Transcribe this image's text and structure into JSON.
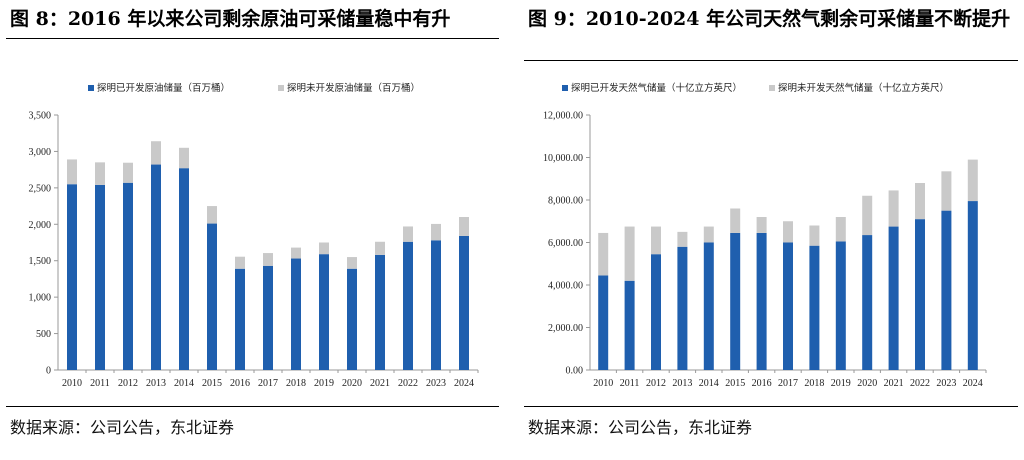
{
  "charts": {
    "oil": {
      "figure_title": "图 8：2016 年以来公司剩余原油可采储量稳中有升",
      "source": "数据来源：公司公告，东北证券"
    },
    "gas": {
      "figure_title": "图 9：2010-2024 年公司天然气剩余可采储量不断提升",
      "source": "数据来源：公司公告，东北证券"
    }
  },
  "colors": {
    "developed": "#1f5fae",
    "undeveloped": "#c9c9c9",
    "axis": "#999999",
    "grid": "#d9d9d9"
  },
  "chart_data": [
    {
      "id": "oil",
      "type": "bar",
      "stacked": true,
      "title": "图 8：2016 年以来公司剩余原油可采储量稳中有升",
      "categories": [
        "2010",
        "2011",
        "2012",
        "2013",
        "2014",
        "2015",
        "2016",
        "2017",
        "2018",
        "2019",
        "2020",
        "2021",
        "2022",
        "2023",
        "2024"
      ],
      "series": [
        {
          "name": "探明已开发原油储量（百万桶）",
          "color": "#1f5fae",
          "values": [
            2550,
            2540,
            2570,
            2820,
            2770,
            2010,
            1390,
            1430,
            1530,
            1590,
            1390,
            1580,
            1760,
            1780,
            1840
          ]
        },
        {
          "name": "探明未开发原油储量（百万桶）",
          "color": "#c9c9c9",
          "values": [
            340,
            310,
            275,
            320,
            280,
            240,
            165,
            175,
            150,
            160,
            160,
            180,
            210,
            225,
            260
          ]
        }
      ],
      "ylim": [
        0,
        3500
      ],
      "yticks": [
        "0",
        "500",
        "1,000",
        "1,500",
        "2,000",
        "2,500",
        "3,000",
        "3,500"
      ],
      "xlabel": "",
      "ylabel": "",
      "legend": "top"
    },
    {
      "id": "gas",
      "type": "bar",
      "stacked": true,
      "title": "图 9：2010-2024 年公司天然气剩余可采储量不断提升",
      "categories": [
        "2010",
        "2011",
        "2012",
        "2013",
        "2014",
        "2015",
        "2016",
        "2017",
        "2018",
        "2019",
        "2020",
        "2021",
        "2022",
        "2023",
        "2024"
      ],
      "series": [
        {
          "name": "探明已开发天然气储量（十亿立方英尺）",
          "color": "#1f5fae",
          "values": [
            4450,
            4200,
            5450,
            5800,
            6000,
            6450,
            6450,
            6000,
            5850,
            6050,
            6350,
            6750,
            7100,
            7500,
            7950
          ]
        },
        {
          "name": "探明未开发天然气储量（十亿立方英尺）",
          "color": "#c9c9c9",
          "values": [
            2000,
            2550,
            1300,
            700,
            750,
            1150,
            750,
            1000,
            950,
            1150,
            1850,
            1700,
            1700,
            1850,
            1950
          ]
        }
      ],
      "ylim": [
        0,
        12000
      ],
      "yticks": [
        "0.00",
        "2,000.00",
        "4,000.00",
        "6,000.00",
        "8,000.00",
        "10,000.00",
        "12,000.00"
      ],
      "xlabel": "",
      "ylabel": "",
      "legend": "top"
    }
  ]
}
